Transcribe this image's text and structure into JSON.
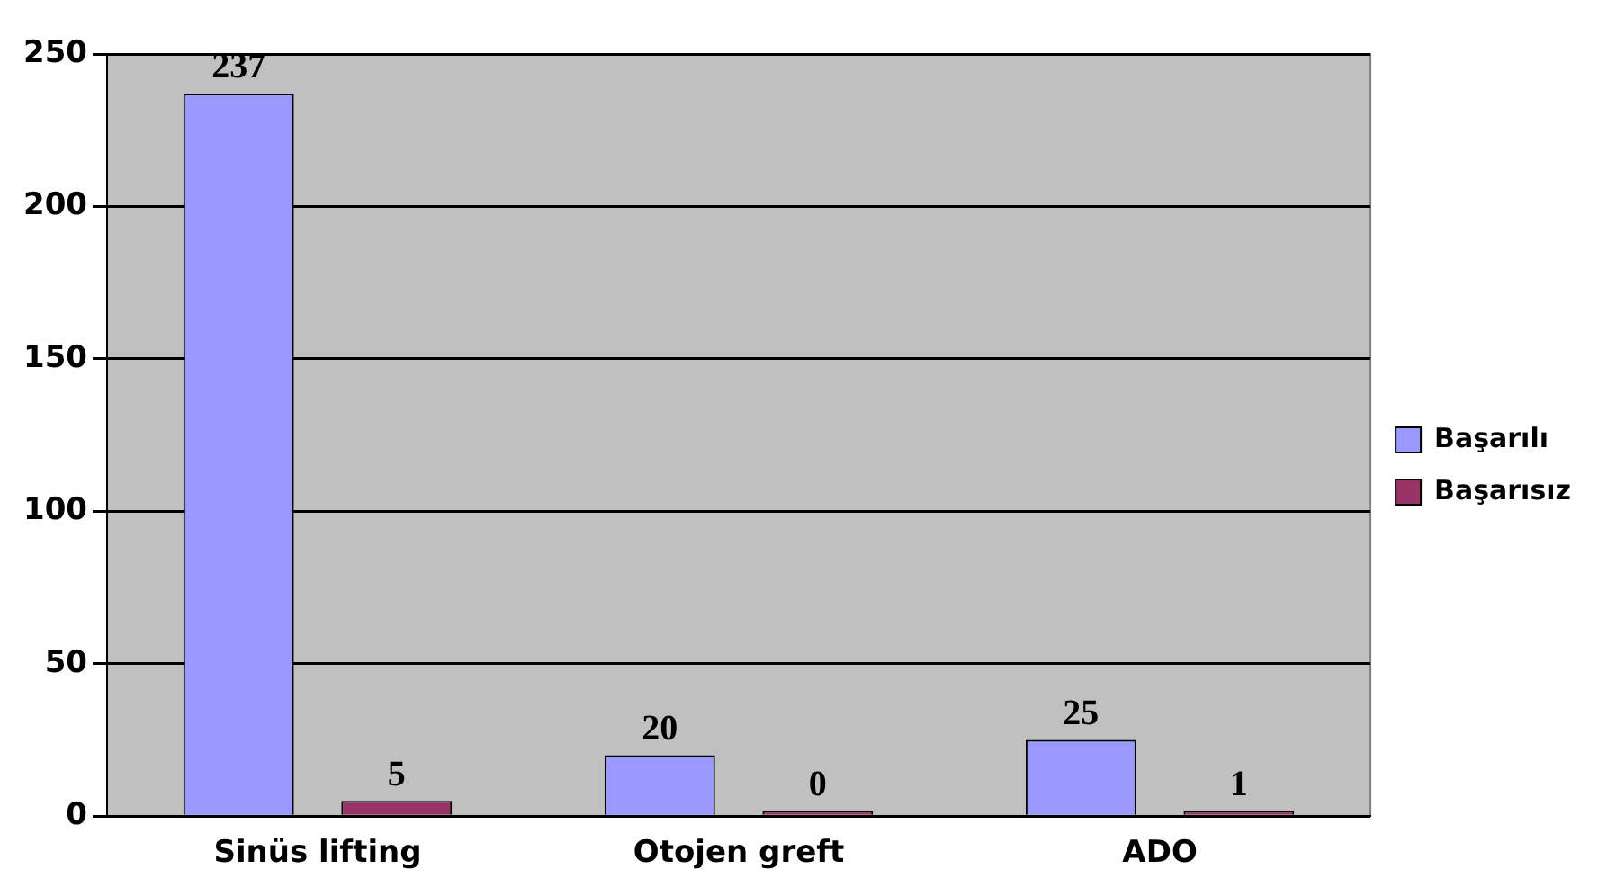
{
  "chart_data": {
    "type": "bar",
    "categories": [
      "Sinüs lifting",
      "Otojen greft",
      "ADO"
    ],
    "series": [
      {
        "name": "Başarılı",
        "color": "#9999ff",
        "values": [
          237,
          20,
          25
        ]
      },
      {
        "name": "Başarısız",
        "color": "#993366",
        "values": [
          5,
          0,
          1
        ]
      }
    ],
    "ylim": [
      0,
      250
    ],
    "yticks": [
      0,
      50,
      100,
      150,
      200,
      250
    ],
    "grid": "y",
    "legend": "right",
    "data_labels": true
  }
}
